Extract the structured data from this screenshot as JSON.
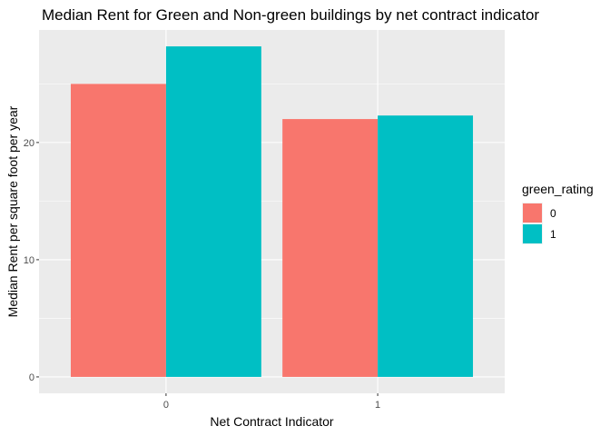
{
  "chart_data": {
    "type": "bar",
    "title": "Median Rent for Green and Non-green buildings by net contract indicator",
    "xlabel": "Net Contract Indicator",
    "ylabel": "Median Rent per square foot per year",
    "categories": [
      "0",
      "1"
    ],
    "series": [
      {
        "name": "0",
        "values": [
          25.0,
          22.0
        ],
        "color": "#F8766D"
      },
      {
        "name": "1",
        "values": [
          28.2,
          22.3
        ],
        "color": "#00BFC4"
      }
    ],
    "ylim": [
      -1.4,
      29.6
    ],
    "yticks": [
      0,
      10,
      20
    ],
    "grid": true,
    "legend": {
      "title": "green_rating",
      "position": "right"
    },
    "colors": {
      "panel_bg": "#EBEBEB",
      "grid": "#FFFFFF",
      "tick": "#333333"
    }
  }
}
